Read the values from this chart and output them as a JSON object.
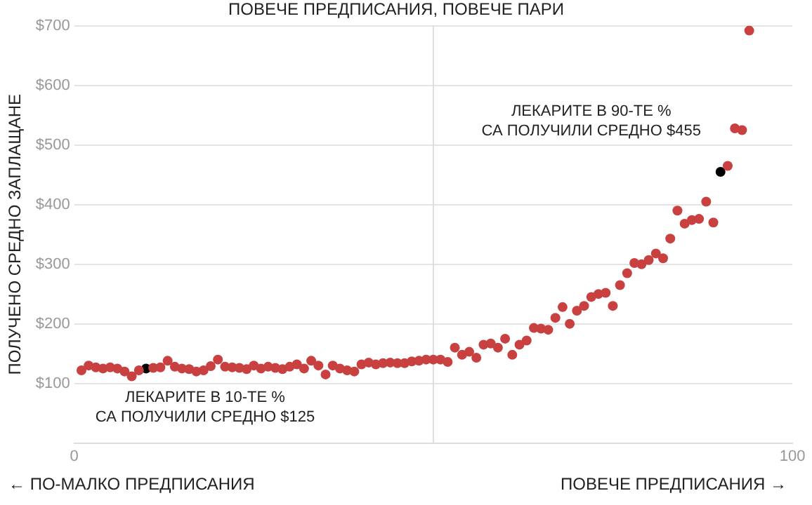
{
  "chart_data": {
    "type": "scatter",
    "title": "ПОВЕЧЕ ПРЕДПИСАНИЯ, ПОВЕЧЕ ПАРИ",
    "ylabel": "ПОЛУЧЕНО СРЕДНО ЗАПЛАЩАНЕ",
    "xlim": [
      0,
      100
    ],
    "xticks": [
      0,
      100
    ],
    "ref_lines": [
      {
        "axis": "x",
        "value": 50,
        "color": "#dddddd"
      }
    ],
    "ylim": [
      0,
      700
    ],
    "yticks": [
      {
        "value": 100,
        "label": "$100"
      },
      {
        "value": 200,
        "label": "$200"
      },
      {
        "value": 300,
        "label": "$300"
      },
      {
        "value": 400,
        "label": "$400"
      },
      {
        "value": 500,
        "label": "$500"
      },
      {
        "value": 600,
        "label": "$600"
      },
      {
        "value": 700,
        "label": "$700"
      }
    ],
    "grid": "y",
    "legend": false,
    "marker": "circle",
    "series": [
      {
        "color": "#c8403f",
        "x": [
          1,
          2,
          3,
          4,
          5,
          6,
          7,
          8,
          9,
          11,
          12,
          13,
          14,
          15,
          16,
          17,
          18,
          19,
          20,
          21,
          22,
          23,
          24,
          25,
          26,
          27,
          28,
          29,
          30,
          31,
          32,
          33,
          34,
          35,
          36,
          37,
          38,
          39,
          40,
          41,
          42,
          43,
          44,
          45,
          46,
          47,
          48,
          49,
          50,
          51,
          52,
          53,
          54,
          55,
          56,
          57,
          58,
          59,
          60,
          61,
          62,
          63,
          64,
          65,
          66,
          67,
          68,
          69,
          70,
          71,
          72,
          73,
          74,
          75,
          76,
          77,
          78,
          79,
          80,
          81,
          82,
          83,
          84,
          85,
          86,
          87,
          88,
          89,
          91,
          92,
          93,
          94
        ],
        "values": [
          122,
          130,
          127,
          125,
          127,
          125,
          120,
          112,
          122,
          126,
          127,
          138,
          128,
          125,
          124,
          120,
          122,
          129,
          140,
          128,
          127,
          126,
          124,
          130,
          125,
          128,
          126,
          124,
          128,
          132,
          125,
          138,
          130,
          115,
          130,
          125,
          122,
          120,
          132,
          135,
          132,
          134,
          135,
          134,
          134,
          137,
          138,
          140,
          140,
          140,
          136,
          160,
          148,
          153,
          143,
          165,
          167,
          160,
          175,
          148,
          165,
          172,
          193,
          192,
          190,
          210,
          228,
          200,
          222,
          230,
          245,
          250,
          252,
          230,
          265,
          285,
          302,
          300,
          307,
          318,
          310,
          343,
          390,
          368,
          374,
          376,
          405,
          370,
          465,
          528,
          525,
          692
        ]
      },
      {
        "color": "#000000",
        "x": [
          10,
          90
        ],
        "values": [
          125,
          455
        ]
      }
    ],
    "annotations": [
      {
        "text": "ЛЕКАРИТЕ В 10-ТЕ %\nСА ПОЛУЧИЛИ СРЕДНО $125",
        "x": 10,
        "y": 125
      },
      {
        "text": "ЛЕКАРИТЕ В 90-ТЕ %\nСА ПОЛУЧИЛИ СРЕДНО $455",
        "x": 90,
        "y": 455
      },
      "← ПО-МАЛКО ПРЕДПИСАНИЯ",
      "ПОВЕЧЕ ПРЕДПИСАНИЯ →"
    ]
  }
}
